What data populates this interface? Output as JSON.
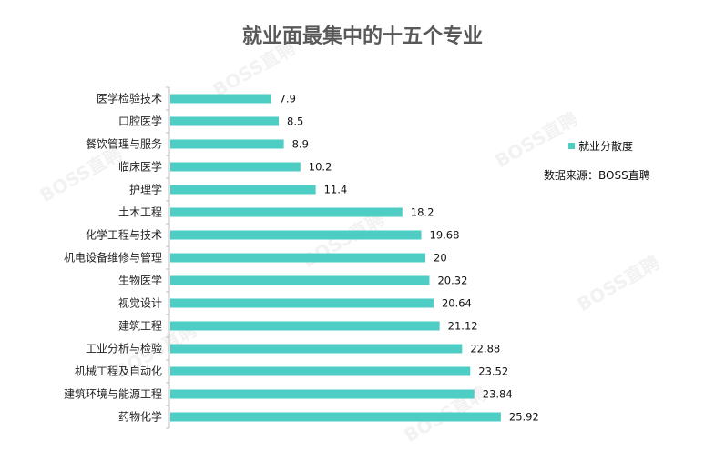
{
  "chart_data": {
    "type": "bar",
    "orientation": "horizontal",
    "title": "就业面最集中的十五个专业",
    "categories": [
      "医学检验技术",
      "口腔医学",
      "餐饮管理与服务",
      "临床医学",
      "护理学",
      "土木工程",
      "化学工程与技术",
      "机电设备维修与管理",
      "生物医学",
      "视觉设计",
      "建筑工程",
      "工业分析与检验",
      "机械工程及自动化",
      "建筑环境与能源工程",
      "药物化学"
    ],
    "series": [
      {
        "name": "就业分散度",
        "values": [
          7.9,
          8.5,
          8.9,
          10.2,
          11.4,
          18.2,
          19.68,
          20,
          20.32,
          20.64,
          21.12,
          22.88,
          23.52,
          23.84,
          25.92
        ],
        "color": "#4ecdc4"
      }
    ],
    "value_labels": [
      "7.9",
      "8.5",
      "8.9",
      "10.2",
      "11.4",
      "18.2",
      "19.68",
      "20",
      "20.32",
      "20.64",
      "21.12",
      "22.88",
      "23.52",
      "23.84",
      "25.92"
    ],
    "legend_position": "right",
    "grid": false
  },
  "source_note": "数据来源：BOSS直聘",
  "watermark_text": "BOSS直聘",
  "colors": {
    "bar": "#4ecdc4",
    "title": "#595959",
    "axis": "#bfbfbf"
  }
}
